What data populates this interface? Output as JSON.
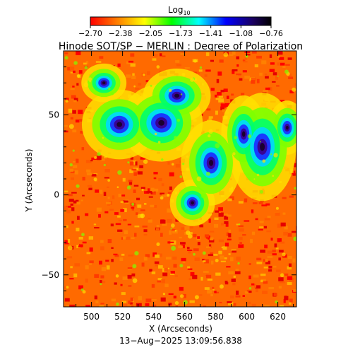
{
  "colorbar": {
    "label": "Log",
    "label_sub": "10",
    "tick_labels": [
      "−2.70",
      "−2.38",
      "−2.05",
      "−1.73",
      "−1.41",
      "−1.08",
      "−0.76"
    ]
  },
  "chart_data": {
    "type": "heatmap",
    "title": "Hinode SOT/SP − MERLIN : Degree of Polarization",
    "xlabel": "X (Arcseconds)",
    "ylabel": "Y (Arcseconds)",
    "xlim": [
      482,
      632
    ],
    "ylim": [
      -70,
      90
    ],
    "x_ticks": [
      500,
      520,
      540,
      560,
      580,
      600,
      620
    ],
    "y_ticks": [
      -50,
      0,
      50
    ],
    "x_tick_labels": [
      "500",
      "520",
      "540",
      "560",
      "580",
      "600",
      "620"
    ],
    "y_tick_labels": [
      "−50",
      "0",
      "50"
    ],
    "value_range": [
      -2.7,
      -0.76
    ],
    "colormap": [
      "#ff0000",
      "#ff7f00",
      "#ffff00",
      "#00ff00",
      "#00ffff",
      "#0000ff",
      "#1a0060",
      "#000000"
    ],
    "footer": "13−Aug−2025 13:09:56.838"
  }
}
